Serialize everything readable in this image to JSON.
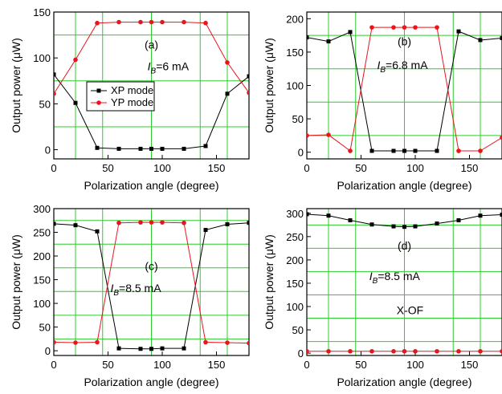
{
  "chart_data": [
    {
      "type": "line",
      "panel_label": "(a)",
      "current_symbol": "I",
      "current_sub": "B",
      "current_value": "=6 mA",
      "xlabel": "Polarization angle (degree)",
      "ylabel": "Output power (μW)",
      "xlim": [
        0,
        180
      ],
      "ylim": [
        -10,
        150
      ],
      "xticks": [
        0,
        50,
        100,
        150
      ],
      "yticks": [
        0,
        50,
        100,
        150
      ],
      "xgrid": [
        20,
        45,
        90,
        135,
        160
      ],
      "ygrid": [
        25,
        75,
        125
      ],
      "legend": {
        "placement": "center-left",
        "entries": [
          "XP mode",
          "YP mode"
        ]
      },
      "x": [
        0,
        20,
        40,
        60,
        80,
        90,
        100,
        120,
        140,
        160,
        180
      ],
      "series": [
        {
          "name": "XP mode",
          "color": "#000000",
          "marker": "square",
          "values": [
            82,
            51,
            2,
            1,
            1,
            1,
            1,
            1,
            4,
            61,
            80
          ]
        },
        {
          "name": "YP mode",
          "color": "#e8151a",
          "marker": "circle",
          "values": [
            61,
            98,
            138,
            139,
            139,
            139,
            139,
            139,
            138,
            95,
            62
          ]
        }
      ]
    },
    {
      "type": "line",
      "panel_label": "(b)",
      "current_symbol": "I",
      "current_sub": "B",
      "current_value": "=6.8 mA",
      "xlabel": "Polarization angle (degree)",
      "ylabel": "Output power (μW)",
      "xlim": [
        0,
        180
      ],
      "ylim": [
        -10,
        210
      ],
      "xticks": [
        0,
        50,
        100,
        150
      ],
      "yticks": [
        0,
        50,
        100,
        150,
        200
      ],
      "xgrid": [
        20,
        45,
        90,
        135,
        160
      ],
      "ygrid": [
        25,
        75,
        125,
        175
      ],
      "x": [
        0,
        20,
        40,
        60,
        80,
        90,
        100,
        120,
        140,
        160,
        180
      ],
      "series": [
        {
          "name": "XP mode",
          "color": "#000000",
          "marker": "square",
          "values": [
            172,
            166,
            180,
            2,
            2,
            2,
            2,
            2,
            181,
            168,
            171
          ]
        },
        {
          "name": "YP mode",
          "color": "#e8151a",
          "marker": "circle",
          "values": [
            25,
            26,
            2,
            187,
            187,
            187,
            187,
            187,
            2,
            2,
            22
          ]
        }
      ]
    },
    {
      "type": "line",
      "panel_label": "(c)",
      "current_symbol": "I",
      "current_sub": "B",
      "current_value": "=8.5 mA",
      "xlabel": "Polarization angle (degree)",
      "ylabel": "Output power (μW)",
      "xlim": [
        0,
        180
      ],
      "ylim": [
        -10,
        300
      ],
      "xticks": [
        0,
        50,
        100,
        150
      ],
      "yticks": [
        0,
        50,
        100,
        150,
        200,
        250,
        300
      ],
      "xgrid": [
        20,
        45,
        90,
        135,
        160
      ],
      "ygrid": [
        25,
        75,
        125,
        175,
        225,
        275
      ],
      "x": [
        0,
        20,
        40,
        60,
        80,
        90,
        100,
        120,
        140,
        160,
        180
      ],
      "series": [
        {
          "name": "XP mode",
          "color": "#000000",
          "marker": "square",
          "values": [
            268,
            265,
            252,
            5,
            4,
            4,
            5,
            5,
            255,
            267,
            270
          ]
        },
        {
          "name": "YP mode",
          "color": "#e8151a",
          "marker": "circle",
          "values": [
            18,
            17,
            18,
            270,
            271,
            271,
            271,
            270,
            18,
            17,
            16
          ]
        }
      ]
    },
    {
      "type": "line",
      "panel_label": "(d)",
      "current_symbol": "I",
      "current_sub": "B",
      "current_value": "=8.5 mA",
      "extra_label": "X-OF",
      "xlabel": "Polarization angle (degree)",
      "ylabel": "Output power (μW)",
      "xlim": [
        0,
        180
      ],
      "ylim": [
        -5,
        310
      ],
      "xticks": [
        0,
        50,
        100,
        150
      ],
      "yticks": [
        0,
        50,
        100,
        150,
        200,
        250,
        300
      ],
      "xgrid": [
        20,
        45,
        90,
        135,
        160
      ],
      "ygrid": [
        25,
        75,
        125,
        175,
        225,
        275
      ],
      "x": [
        0,
        20,
        40,
        60,
        80,
        90,
        100,
        120,
        140,
        160,
        180
      ],
      "series": [
        {
          "name": "XP mode",
          "color": "#000000",
          "marker": "square",
          "values": [
            298,
            295,
            285,
            276,
            272,
            271,
            272,
            278,
            285,
            295,
            297
          ]
        },
        {
          "name": "YP mode",
          "color": "#e8151a",
          "marker": "circle",
          "values": [
            4,
            4,
            4,
            4,
            4,
            4,
            4,
            4,
            4,
            4,
            4
          ]
        }
      ]
    }
  ]
}
